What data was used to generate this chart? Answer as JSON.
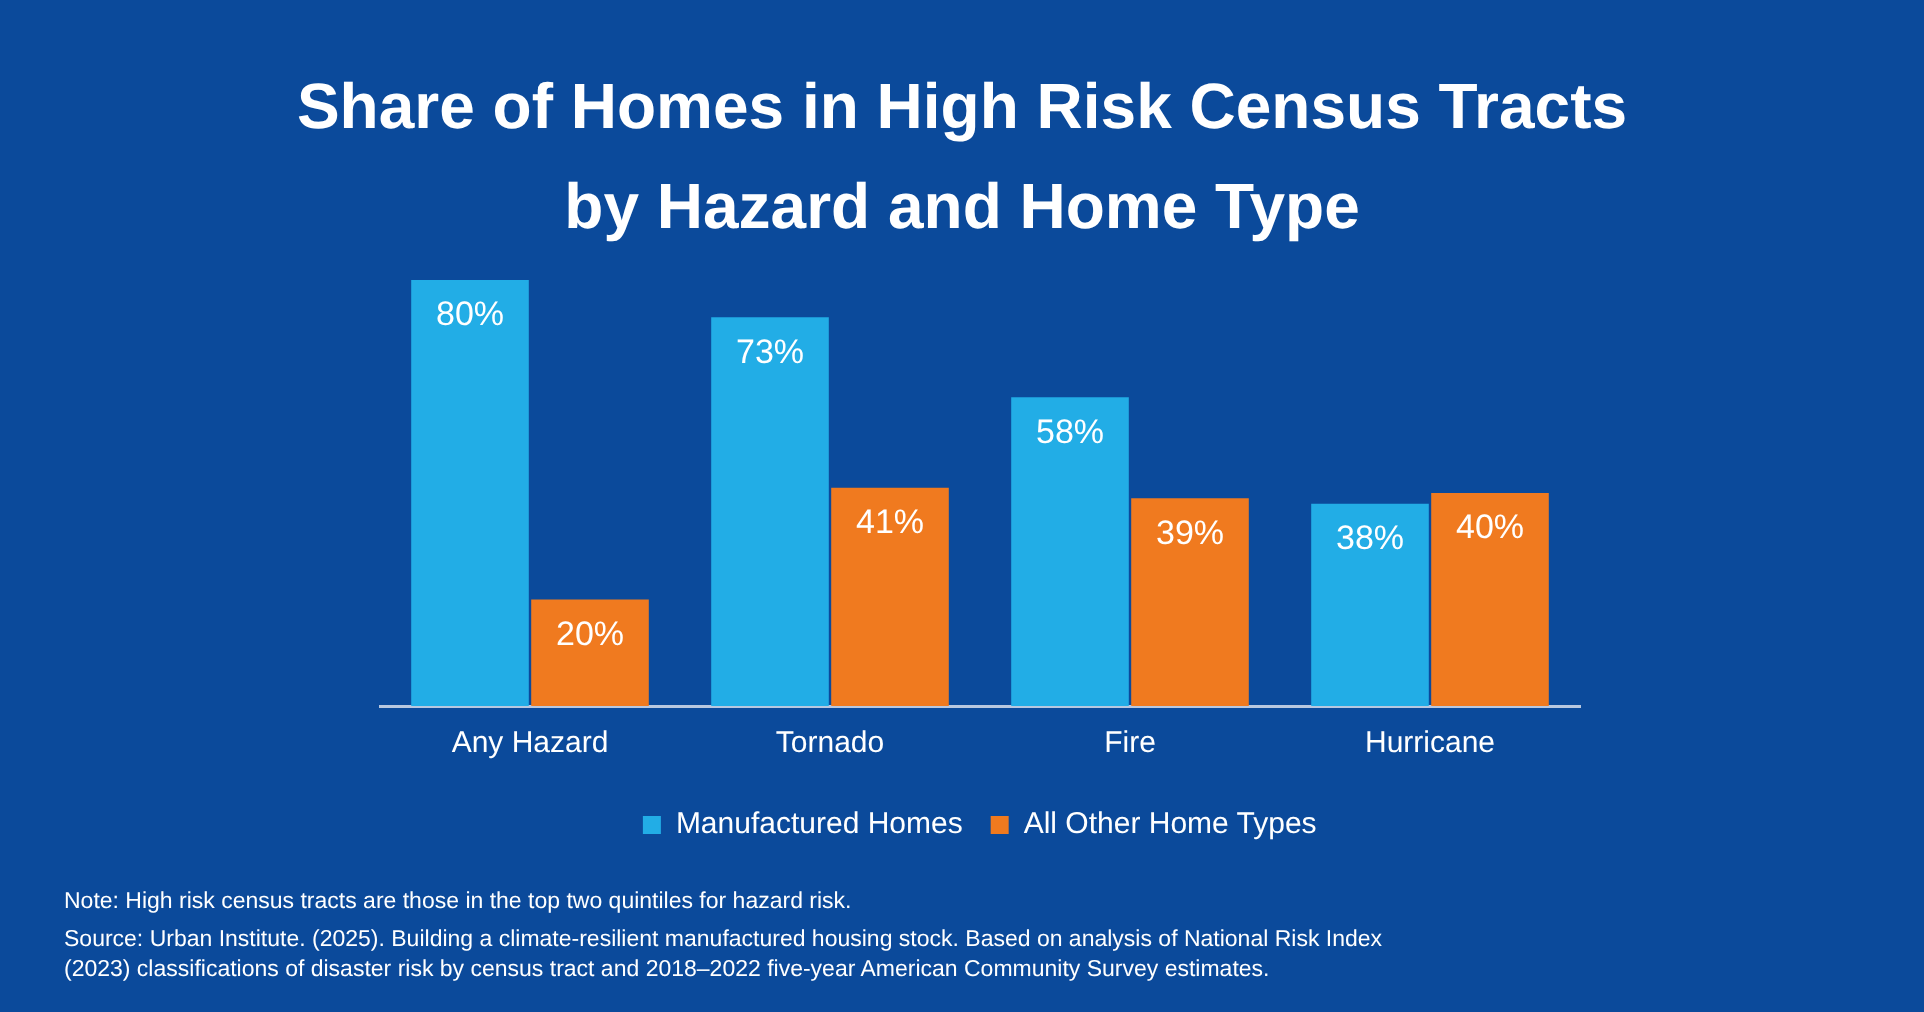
{
  "chart_data": {
    "type": "bar",
    "title": "Share of Homes in High Risk Census Tracts by Hazard and Home Type",
    "categories": [
      "Any Hazard",
      "Tornado",
      "Fire",
      "Hurricane"
    ],
    "series": [
      {
        "name": "Manufactured Homes",
        "color": "#22ade6",
        "values": [
          80,
          73,
          58,
          38
        ],
        "value_labels": [
          "80%",
          "73%",
          "58%",
          "38%"
        ]
      },
      {
        "name": "All Other Home Types",
        "color": "#f07a1f",
        "values": [
          20,
          41,
          39,
          40
        ],
        "value_labels": [
          "20%",
          "41%",
          "39%",
          "40%"
        ]
      }
    ],
    "tick_labels": "x",
    "legend": "bottom",
    "grid": false,
    "annotations": [
      "Note: High risk census tracts are those in the top two quintiles for hazard risk.",
      "Source: Urban Institute. (2025). Building a climate-resilient manufactured housing stock. Based on analysis of National Risk Index (2023) classifications of disaster risk by census tract and 2018–2022 five-year American Community Survey estimates."
    ]
  }
}
